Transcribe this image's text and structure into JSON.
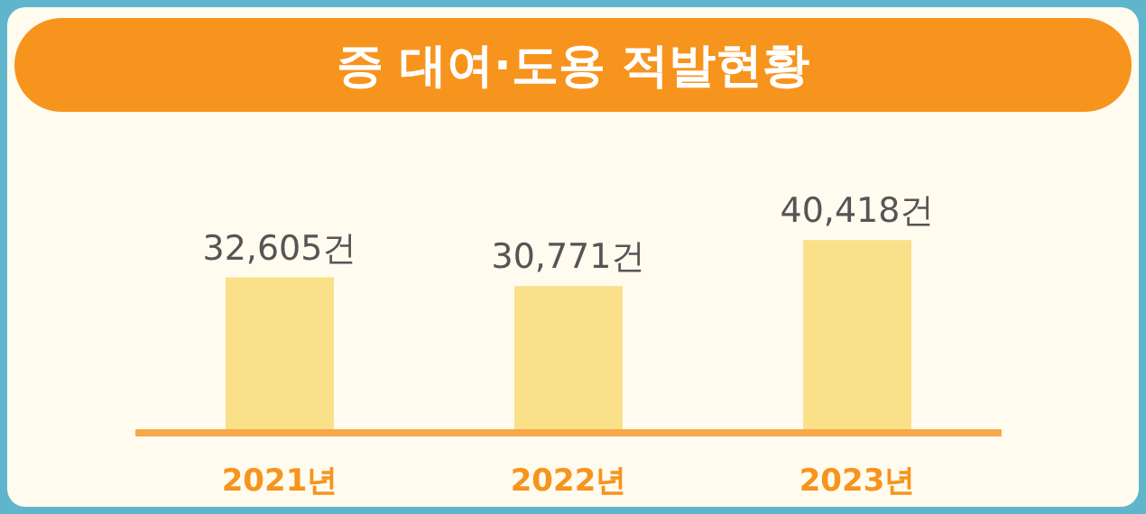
{
  "chart_data": {
    "type": "bar",
    "title": "증 대여·도용 적발현황",
    "categories": [
      "2021년",
      "2022년",
      "2023년"
    ],
    "values": [
      32605,
      30771,
      40418
    ],
    "value_labels": [
      "32,605건",
      "30,771건",
      "40,418건"
    ],
    "color": "#fbe08a"
  }
}
